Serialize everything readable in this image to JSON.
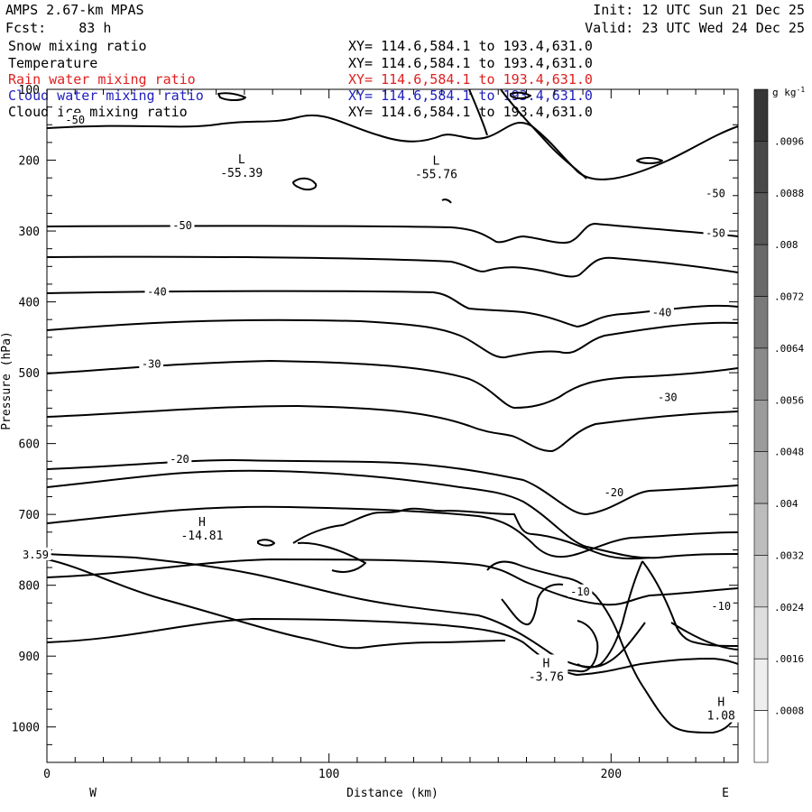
{
  "header": {
    "model": "AMPS 2.67-km MPAS",
    "forecast": "Fcst:    83 h",
    "init": "Init: 12 UTC Sun 21 Dec 25",
    "valid": "Valid: 23 UTC Wed 24 Dec 25"
  },
  "fields": [
    {
      "name": "Snow mixing ratio",
      "xy": "XY= 114.6,584.1 to 193.4,631.0",
      "color": "#000000"
    },
    {
      "name": "Temperature",
      "xy": "XY= 114.6,584.1 to 193.4,631.0",
      "color": "#000000"
    },
    {
      "name": "Rain water mixing ratio",
      "xy": "XY= 114.6,584.1 to 193.4,631.0",
      "color": "#e02020"
    },
    {
      "name": "Cloud water mixing ratio",
      "xy": "XY= 114.6,584.1 to 193.4,631.0",
      "color": "#2020c0"
    },
    {
      "name": "Cloud ice mixing ratio",
      "xy": "XY= 114.6,584.1 to 193.4,631.0",
      "color": "#000000"
    }
  ],
  "chart_data": {
    "type": "contour",
    "xlabel": "Distance (km)",
    "ylabel": "Pressure (hPa)",
    "xlim": [
      0,
      245
    ],
    "ylim": [
      1050,
      100
    ],
    "x_ticks": [
      0,
      100,
      200
    ],
    "y_ticks": [
      100,
      200,
      300,
      400,
      500,
      600,
      700,
      800,
      900,
      1000
    ],
    "x_end_labels": {
      "left": "W",
      "right": "E"
    },
    "contour_labels": [
      {
        "text": "-50",
        "x": 10,
        "y": 143
      },
      {
        "text": "-50",
        "x": 48,
        "y": 292
      },
      {
        "text": "-50",
        "x": 237,
        "y": 247
      },
      {
        "text": "-50",
        "x": 237,
        "y": 303
      },
      {
        "text": "-40",
        "x": 39,
        "y": 386
      },
      {
        "text": "-40",
        "x": 218,
        "y": 415
      },
      {
        "text": "-30",
        "x": 37,
        "y": 488
      },
      {
        "text": "-30",
        "x": 220,
        "y": 535
      },
      {
        "text": "-20",
        "x": 47,
        "y": 622
      },
      {
        "text": "-20",
        "x": 201,
        "y": 669
      },
      {
        "text": "-10",
        "x": 189,
        "y": 809
      },
      {
        "text": "-10",
        "x": 239,
        "y": 830
      },
      {
        "text": "3.59",
        "x": -4,
        "y": 757
      }
    ],
    "extrema": [
      {
        "type": "L",
        "value": "-55.39",
        "x": 69,
        "y": 216
      },
      {
        "type": "L",
        "value": "-55.76",
        "x": 138,
        "y": 218
      },
      {
        "type": "H",
        "value": "-14.81",
        "x": 55,
        "y": 728
      },
      {
        "type": "H",
        "value": "-3.76",
        "x": 177,
        "y": 927
      },
      {
        "type": "H",
        "value": "1.08",
        "x": 239,
        "y": 982
      }
    ],
    "colorbar": {
      "unit": "g kg",
      "unit_sup": "-1",
      "labels": [
        ".0096",
        ".0088",
        ".008",
        ".0072",
        ".0064",
        ".0056",
        ".0048",
        ".004",
        ".0032",
        ".0024",
        ".0016",
        ".0008"
      ]
    }
  }
}
